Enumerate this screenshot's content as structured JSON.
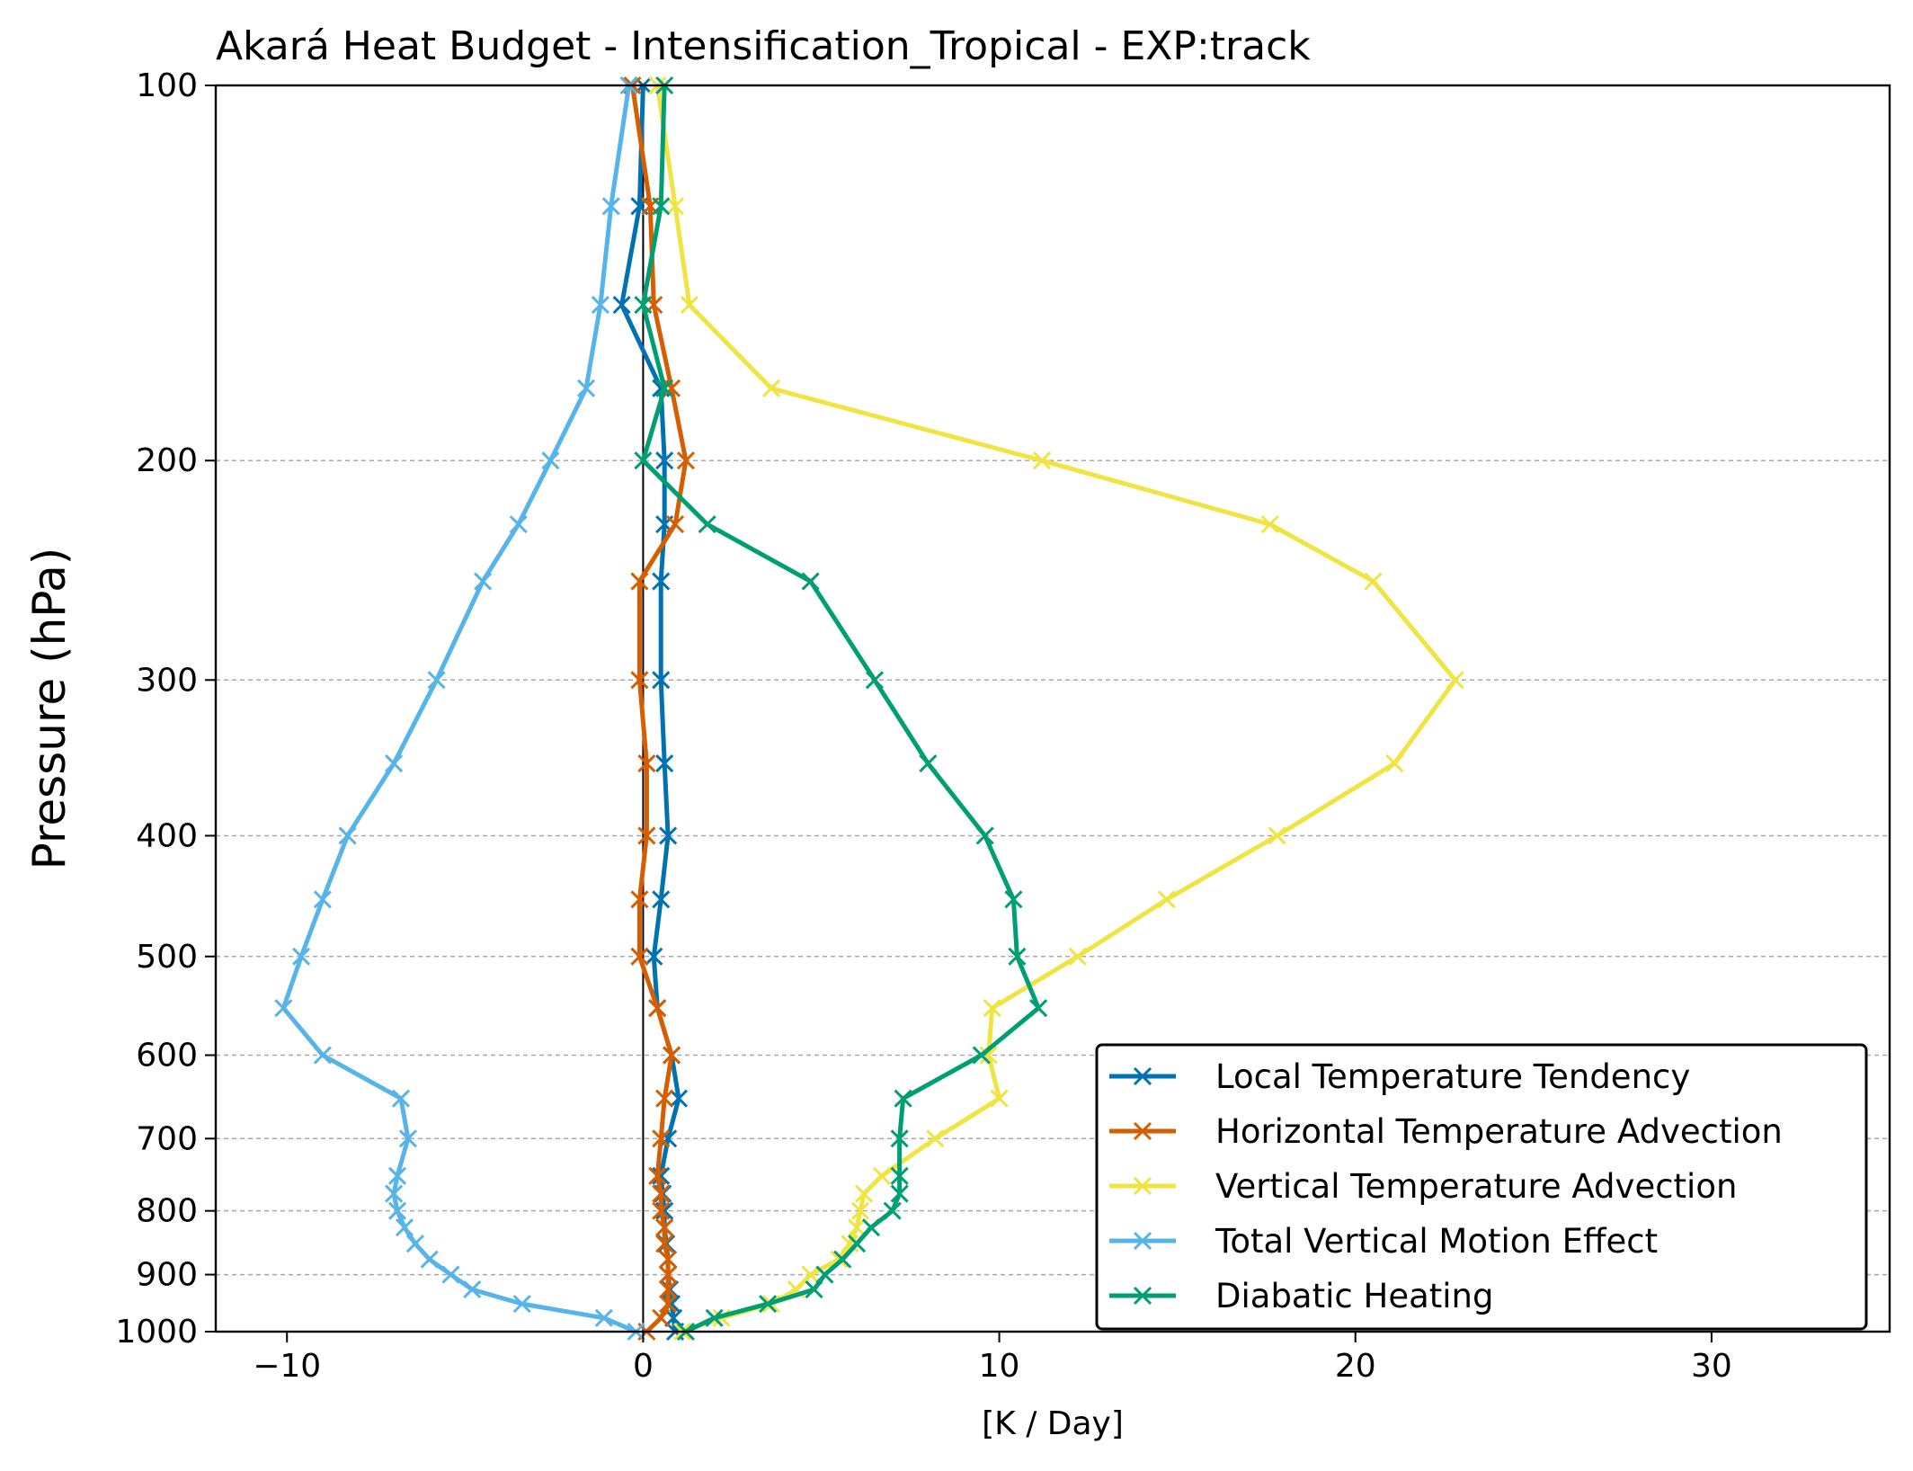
{
  "chart_data": {
    "type": "line",
    "title": "Akará Heat Budget - Intensification_Tropical - EXP:track",
    "xlabel": "[K / Day]",
    "ylabel": "Pressure (hPa)",
    "xlim": [
      -12,
      35
    ],
    "ylim": [
      1000,
      100
    ],
    "yscale": "log",
    "xticks": [
      -10,
      0,
      10,
      20,
      30
    ],
    "xtick_labels": [
      "−10",
      "0",
      "10",
      "20",
      "30"
    ],
    "yticks": [
      100,
      200,
      300,
      400,
      500,
      600,
      700,
      800,
      900,
      1000
    ],
    "ytick_labels": [
      "100",
      "200",
      "300",
      "400",
      "500",
      "600",
      "700",
      "800",
      "900",
      "1000"
    ],
    "grid": "horizontal dashed",
    "zero_line": true,
    "legend_position": "lower right",
    "pressure_levels": [
      1000,
      975,
      950,
      925,
      900,
      875,
      850,
      825,
      800,
      775,
      750,
      700,
      650,
      600,
      550,
      500,
      450,
      400,
      350,
      300,
      250,
      225,
      200,
      175,
      150,
      125,
      100
    ],
    "series": [
      {
        "name": "Local Temperature Tendency",
        "color": "#0072B2",
        "values": [
          0.9,
          0.85,
          0.8,
          0.75,
          0.7,
          0.7,
          0.65,
          0.6,
          0.6,
          0.55,
          0.5,
          0.7,
          1.0,
          0.8,
          0.4,
          0.3,
          0.5,
          0.7,
          0.6,
          0.5,
          0.5,
          0.6,
          0.6,
          0.5,
          -0.6,
          -0.1,
          0.0
        ]
      },
      {
        "name": "Horizontal Temperature Advection",
        "color": "#D55E00",
        "values": [
          0.1,
          0.5,
          0.7,
          0.7,
          0.7,
          0.7,
          0.6,
          0.6,
          0.5,
          0.5,
          0.4,
          0.5,
          0.6,
          0.8,
          0.4,
          -0.1,
          -0.1,
          0.1,
          0.1,
          -0.1,
          -0.1,
          0.9,
          1.2,
          0.8,
          0.3,
          0.2,
          -0.3
        ]
      },
      {
        "name": "Vertical Temperature Advection",
        "color": "#F0E442",
        "values": [
          1.1,
          2.2,
          3.6,
          4.3,
          4.7,
          5.5,
          5.8,
          6.0,
          6.1,
          6.2,
          6.7,
          8.2,
          10.0,
          9.7,
          9.8,
          12.2,
          14.7,
          17.8,
          21.1,
          22.8,
          20.5,
          17.6,
          11.2,
          3.6,
          1.3,
          0.9,
          0.4
        ]
      },
      {
        "name": "Total Vertical Motion Effect",
        "color": "#56B4E9",
        "values": [
          -0.2,
          -1.1,
          -3.4,
          -4.8,
          -5.4,
          -6.0,
          -6.4,
          -6.7,
          -6.9,
          -7.0,
          -6.9,
          -6.6,
          -6.8,
          -9.0,
          -10.1,
          -9.6,
          -9.0,
          -8.3,
          -7.0,
          -5.8,
          -4.5,
          -3.5,
          -2.6,
          -1.6,
          -1.2,
          -0.9,
          -0.4
        ]
      },
      {
        "name": "Diabatic Heating",
        "color": "#009E73",
        "values": [
          1.2,
          2.0,
          3.5,
          4.8,
          5.1,
          5.6,
          6.0,
          6.4,
          7.0,
          7.2,
          7.2,
          7.2,
          7.3,
          9.5,
          11.1,
          10.5,
          10.4,
          9.6,
          8.0,
          6.5,
          4.7,
          1.8,
          0.0,
          0.6,
          0.0,
          0.5,
          0.6
        ]
      }
    ]
  }
}
